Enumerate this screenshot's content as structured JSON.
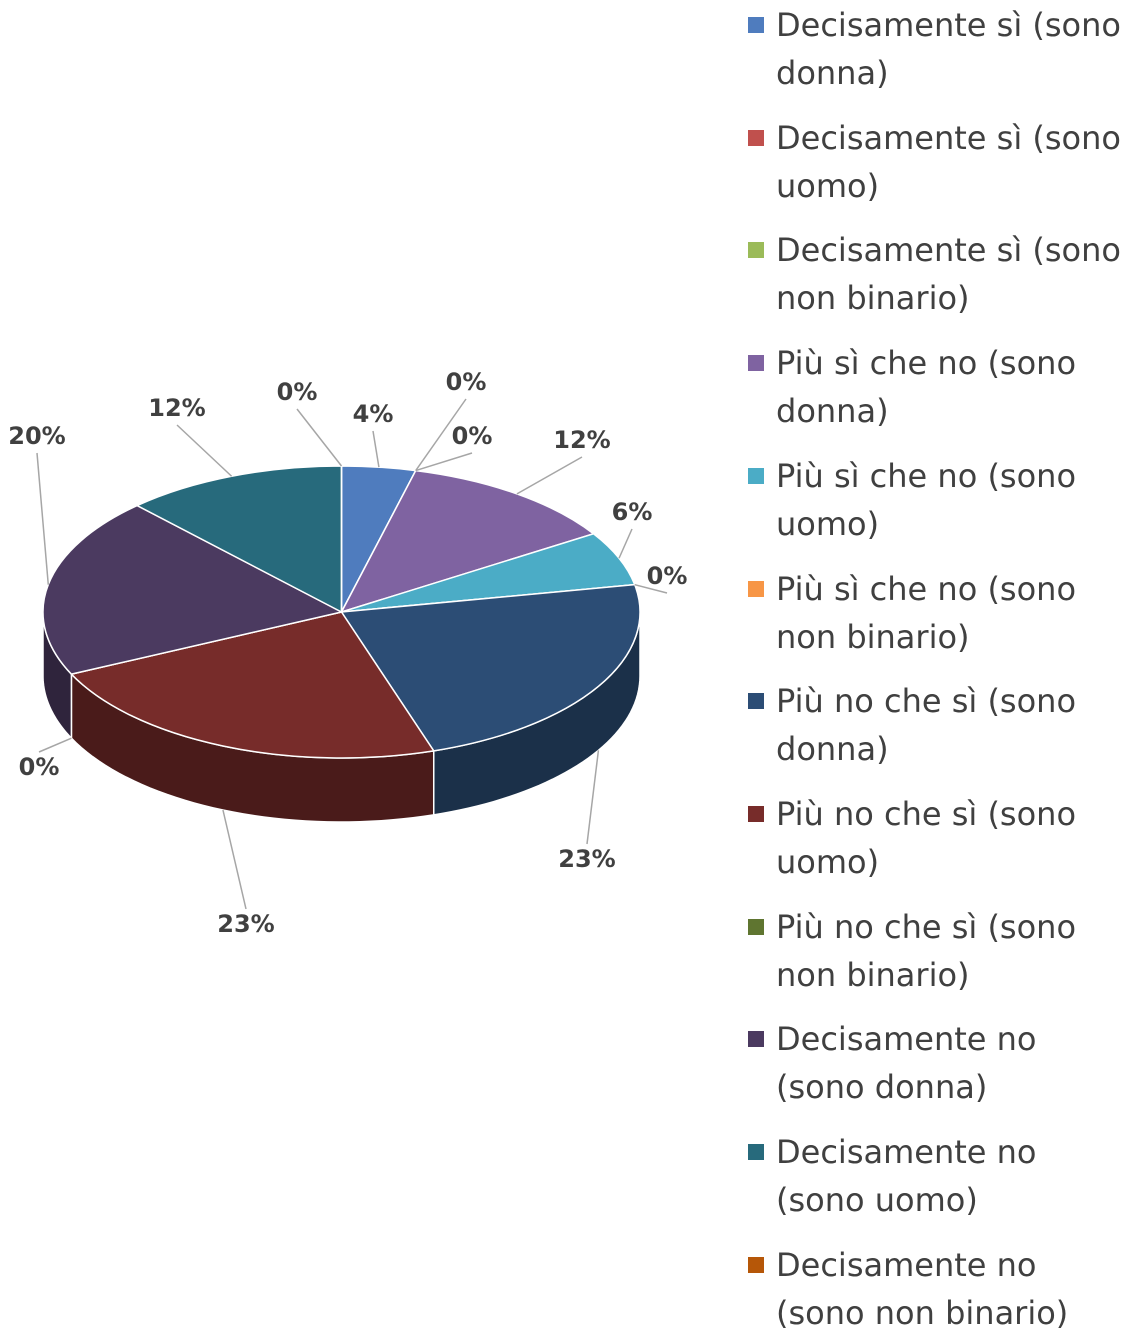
{
  "chart_data": {
    "type": "pie3d",
    "categories": [
      "Decisamente sì (sono donna)",
      "Decisamente sì (sono uomo)",
      "Decisamente sì (sono non binario)",
      "Più sì che no (sono donna)",
      "Più sì che no (sono uomo)",
      "Più sì che no (sono non binario)",
      "Più no che sì (sono donna)",
      "Più no che sì (sono uomo)",
      "Più no che sì (sono non binario)",
      "Decisamente no (sono donna)",
      "Decisamente no (sono uomo)",
      "Decisamente no (sono non binario)"
    ],
    "values": [
      4,
      0,
      0,
      12,
      6,
      0,
      23,
      23,
      0,
      20,
      12,
      0
    ],
    "value_labels": [
      "4%",
      "0%",
      "0%",
      "12%",
      "6%",
      "0%",
      "23%",
      "23%",
      "0%",
      "20%",
      "12%",
      "0%"
    ],
    "colors": [
      "#4f7cbe",
      "#c0504d",
      "#9bbb59",
      "#7f63a1",
      "#4bacc6",
      "#f79646",
      "#2c4d75",
      "#772c2a",
      "#5f7530",
      "#4b3a60",
      "#276a7c",
      "#b65708"
    ],
    "legend": "right"
  }
}
